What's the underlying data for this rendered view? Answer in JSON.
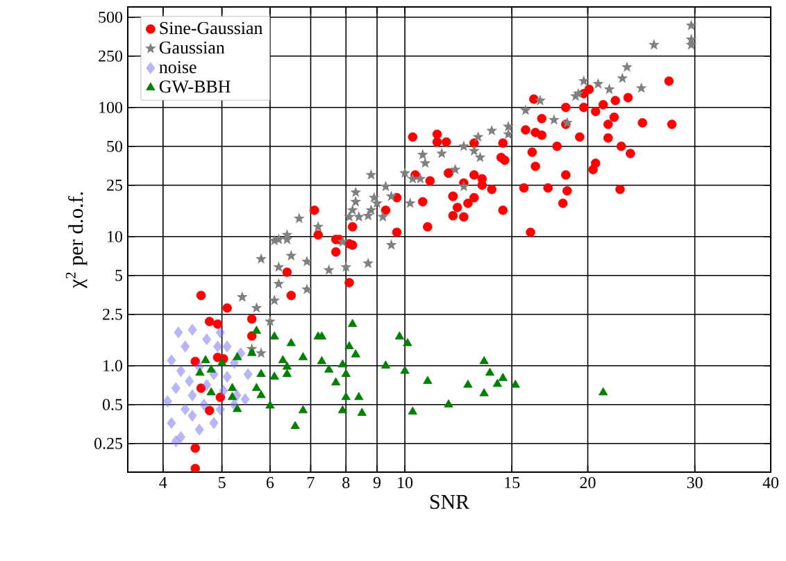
{
  "chart_data": {
    "type": "scatter",
    "xlabel": "SNR",
    "ylabel": "χ$^{2}$ per d.o.f.",
    "log": "xy",
    "grid": true,
    "legend": "top left",
    "xlim": [
      3.5,
      40
    ],
    "ylim": [
      0.15,
      600
    ],
    "xticks": [
      4,
      5,
      6,
      7,
      8,
      9,
      10,
      15,
      20,
      30,
      40
    ],
    "yticks": [
      0.25,
      0.5,
      {
        "value": 1,
        "label": "1.0"
      },
      2.5,
      5,
      10,
      25,
      50,
      100,
      250,
      500
    ],
    "series": [
      {
        "name": "Sine-Gaussian",
        "color": "#ff0000",
        "marker": "circle",
        "x": [
          27.2,
          27.5,
          24.6,
          23.5,
          22.6,
          22.7,
          21.6,
          21.6,
          22.1,
          21.2,
          20.6,
          22.2,
          23.3,
          20.1,
          19.7,
          19.7,
          18.4,
          18.4,
          19.4,
          20.6,
          20.4,
          18.4,
          18.5,
          18.2,
          17.2,
          17.8,
          16.8,
          16.4,
          15.8,
          16.8,
          16.3,
          16.2,
          16.4,
          15.7,
          16.1,
          14.5,
          14.5,
          14.4,
          14.6,
          13.9,
          13.4,
          13.4,
          13.0,
          13.0,
          12.5,
          12.0,
          11.8,
          11.7,
          13.0,
          12.7,
          12.2,
          12.0,
          12.5,
          10.3,
          11.3,
          11.3,
          11.8,
          10.4,
          11.0,
          12.0,
          10.7,
          9.7,
          10.9,
          9.7,
          7.1,
          7.2,
          7.7,
          8.2,
          8.2,
          9.3,
          7.7,
          8.1,
          7.8,
          6.4,
          6.5,
          8.1,
          4.62,
          5.1,
          5.6,
          4.77,
          4.92,
          5.6,
          4.52,
          4.92,
          5.03,
          4.62,
          4.97,
          4.77,
          4.52,
          4.52
        ],
        "values": [
          160,
          74,
          76,
          44,
          23.2,
          50,
          58,
          74,
          84,
          105,
          93,
          113,
          119,
          138,
          128,
          100,
          100,
          74,
          59,
          37,
          33,
          30,
          22.6,
          18.1,
          23.8,
          50,
          61,
          64,
          67,
          82,
          116,
          45,
          35,
          23.8,
          10.8,
          16,
          53,
          41,
          39,
          23.2,
          28,
          25,
          30,
          53,
          26,
          20.5,
          31,
          54,
          20,
          18.1,
          16.8,
          14.5,
          14.2,
          59,
          62,
          54,
          31,
          30,
          27,
          20.5,
          18.6,
          20,
          11.9,
          10.8,
          16,
          10.3,
          9.5,
          8.6,
          11.9,
          16,
          7.6,
          8.8,
          9.5,
          5.3,
          3.5,
          4.4,
          3.5,
          2.8,
          2.3,
          2.2,
          2.1,
          1.7,
          1.08,
          1.16,
          1.13,
          0.67,
          0.57,
          0.45,
          0.23,
          0.16
        ]
      },
      {
        "name": "Gaussian",
        "color": "#808080",
        "marker": "star",
        "x": [
          29.6,
          29.6,
          29.6,
          25.7,
          23.2,
          22.8,
          24.5,
          21.7,
          20.8,
          19.7,
          19.3,
          19.1,
          18.5,
          17.6,
          16.7,
          15.8,
          14.8,
          14.8,
          13.9,
          13.2,
          12.5,
          13.0,
          13.3,
          12.1,
          12.5,
          10.7,
          10.8,
          11.5,
          10.0,
          10.3,
          10.6,
          8.8,
          9.3,
          8.9,
          8.3,
          8.3,
          9.0,
          8.8,
          8.2,
          8.7,
          8.1,
          9.2,
          8.4,
          6.7,
          6.4,
          6.2,
          7.2,
          7.9,
          10.2,
          9.5,
          6.1,
          6.4,
          6.5,
          5.8,
          6.2,
          6.9,
          7.5,
          8.0,
          8.7,
          9.5,
          6.9,
          6.2,
          6.1,
          5.7,
          5.4,
          6.0,
          5.6,
          5.8
        ],
        "values": [
          431,
          336,
          305,
          305,
          205,
          168,
          141,
          138,
          152,
          160,
          128,
          122,
          76,
          80,
          113,
          95,
          71,
          62,
          66,
          59,
          50,
          46,
          41,
          33,
          24.4,
          43,
          37,
          44,
          31,
          28,
          28,
          30,
          24.4,
          20,
          22,
          18.6,
          18.1,
          16,
          16,
          14.5,
          14.2,
          14.2,
          14.2,
          13.8,
          10.3,
          9.5,
          11.9,
          9.1,
          18.1,
          20.5,
          9.3,
          9.5,
          7.1,
          6.7,
          5.8,
          6.4,
          5.5,
          5.8,
          6.2,
          8.6,
          3.9,
          4.3,
          3.2,
          2.8,
          3.4,
          2.2,
          1.35,
          1.25
        ]
      },
      {
        "name": "noise",
        "color": "#7070f0",
        "marker": "diamond",
        "x": [
          4.24,
          4.35,
          4.47,
          4.72,
          4.97,
          5.1,
          4.13,
          4.28,
          4.59,
          4.85,
          5.24,
          5.37,
          5.52,
          4.2,
          4.47,
          4.72,
          5.03,
          5.29,
          4.07,
          4.35,
          4.67,
          4.97,
          5.24,
          5.46,
          4.13,
          4.47,
          4.85,
          4.28,
          4.59,
          4.2,
          4.72,
          5.1,
          4.42,
          4.92
        ],
        "values": [
          1.81,
          1.41,
          1.9,
          1.6,
          1.81,
          1.41,
          1.1,
          0.91,
          0.98,
          0.86,
          1.05,
          1.25,
          0.86,
          0.67,
          0.59,
          0.71,
          0.64,
          0.59,
          0.53,
          0.46,
          0.5,
          0.46,
          0.5,
          0.55,
          0.36,
          0.41,
          0.36,
          0.28,
          0.32,
          0.26,
          null,
          0.82,
          0.76,
          1.41
        ]
      },
      {
        "name": "GW-BBH",
        "color": "#008000",
        "marker": "triangle",
        "x": [
          5.7,
          6.1,
          6.5,
          7.2,
          7.3,
          8.2,
          8.1,
          8.3,
          9.8,
          10.1,
          5.6,
          5.3,
          4.7,
          5.0,
          4.6,
          4.8,
          6.3,
          6.8,
          7.3,
          7.5,
          7.9,
          8.0,
          7.7,
          9.3,
          10.0,
          10.9,
          5.8,
          6.1,
          6.4,
          6.4,
          5.2,
          5.7,
          5.8,
          4.8,
          5.2,
          5.3,
          6.0,
          6.8,
          6.6,
          8.0,
          8.4,
          7.9,
          8.5,
          10.3,
          11.8,
          13.5,
          13.8,
          14.5,
          14.2,
          15.2,
          12.7,
          13.5,
          21.2
        ],
        "values": [
          1.86,
          1.68,
          1.49,
          1.68,
          1.68,
          2.1,
          1.41,
          1.22,
          1.68,
          1.49,
          1.25,
          1.16,
          1.1,
          1.05,
          0.88,
          0.93,
          1.1,
          1.16,
          1.08,
          0.93,
          1.02,
          0.86,
          0.74,
          1.0,
          0.91,
          0.76,
          0.86,
          0.82,
          0.86,
          0.98,
          0.67,
          0.67,
          0.59,
          0.62,
          0.57,
          0.46,
          0.49,
          0.45,
          0.34,
          0.57,
          0.57,
          0.45,
          0.43,
          0.44,
          0.5,
          1.08,
          0.88,
          0.8,
          0.72,
          0.71,
          0.71,
          0.61,
          0.62
        ]
      }
    ]
  }
}
